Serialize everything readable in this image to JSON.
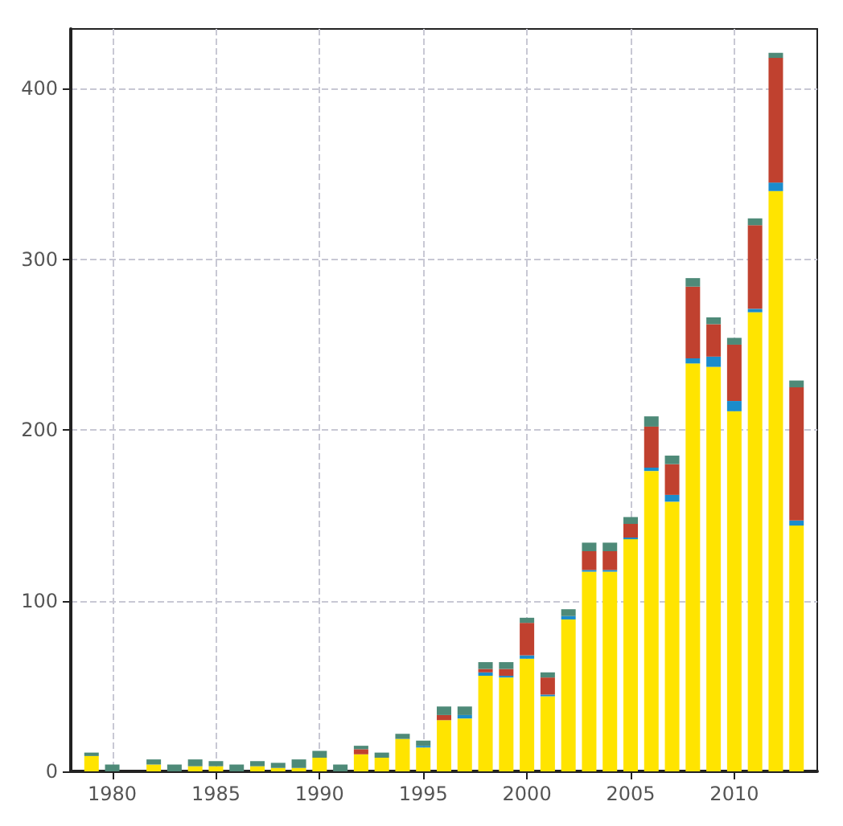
{
  "chart_data": {
    "type": "bar",
    "stacked": true,
    "x": [
      1979,
      1980,
      1981,
      1982,
      1983,
      1984,
      1985,
      1986,
      1987,
      1988,
      1989,
      1990,
      1991,
      1992,
      1993,
      1994,
      1995,
      1996,
      1997,
      1998,
      1999,
      2000,
      2001,
      2002,
      2003,
      2004,
      2005,
      2006,
      2007,
      2008,
      2009,
      2010,
      2011,
      2012,
      2013
    ],
    "series": [
      {
        "color": "#ffe400",
        "values": [
          9,
          0,
          0,
          4,
          0,
          3,
          3,
          0,
          3,
          2,
          2,
          8,
          0,
          10,
          8,
          19,
          14,
          30,
          31,
          56,
          55,
          66,
          44,
          89,
          117,
          117,
          136,
          176,
          158,
          239,
          237,
          211,
          269,
          340,
          144
        ]
      },
      {
        "color": "#1a8ccc",
        "values": [
          0,
          0,
          0,
          0,
          0,
          0,
          0,
          0,
          0,
          0,
          0,
          0,
          0,
          0,
          0,
          0,
          1,
          0,
          2,
          2,
          1,
          2,
          1,
          2,
          1,
          1,
          1,
          2,
          4,
          3,
          6,
          6,
          2,
          5,
          3
        ]
      },
      {
        "color": "#c0412f",
        "values": [
          0,
          0,
          0,
          0,
          0,
          0,
          0,
          0,
          0,
          0,
          0,
          0,
          0,
          3,
          0,
          0,
          0,
          3,
          0,
          2,
          4,
          19,
          10,
          0,
          11,
          11,
          8,
          24,
          18,
          42,
          19,
          33,
          49,
          73,
          78
        ]
      },
      {
        "color": "#4e8a78",
        "values": [
          2,
          4,
          0,
          3,
          4,
          4,
          3,
          4,
          3,
          3,
          5,
          4,
          4,
          2,
          3,
          3,
          3,
          5,
          5,
          4,
          4,
          3,
          3,
          4,
          5,
          5,
          4,
          6,
          5,
          5,
          4,
          4,
          4,
          3,
          4
        ]
      }
    ],
    "xlim": [
      1978,
      2014
    ],
    "xticks": [
      1980,
      1985,
      1990,
      1995,
      2000,
      2005,
      2010
    ],
    "ylim": [
      0,
      435
    ],
    "yticks": [
      0,
      100,
      200,
      300,
      400
    ],
    "grid": true,
    "line_style": "dashed"
  }
}
